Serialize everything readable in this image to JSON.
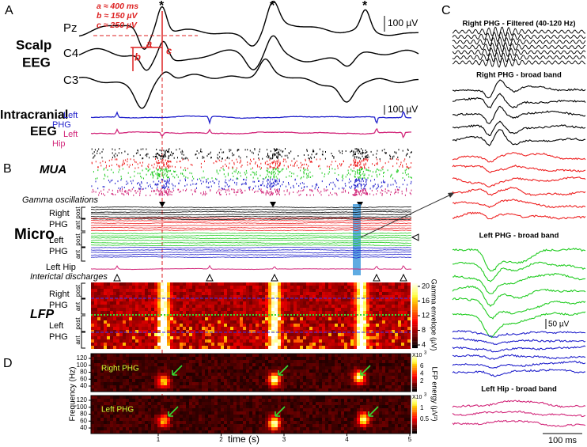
{
  "panel_a": {
    "label": "A",
    "scalp_title": [
      "Scalp",
      "EEG"
    ],
    "channels": [
      "Pz",
      "C4",
      "C3"
    ],
    "annotations": [
      "a ≈ 400 ms",
      "b ≈ 150 µV",
      "c ≈ 250 µV"
    ],
    "segment_letters": [
      "a",
      "b",
      "c"
    ],
    "peak_marker": "*",
    "scale_bar": "100 µV",
    "intracranial_title": [
      "Intracranial",
      "EEG"
    ],
    "intracranial_channels": [
      [
        "Left",
        "PHG"
      ],
      [
        "Left",
        "Hip"
      ]
    ],
    "intracranial_scale_bar": "100 µV"
  },
  "panel_b": {
    "label": "B",
    "mua_title": "MUA",
    "gamma_label": "Gamma oscillations",
    "micro_title": "Micro",
    "micro_groups": [
      [
        "Right",
        "PHG"
      ],
      [
        "Left",
        "PHG"
      ]
    ],
    "subgroups": [
      "post",
      "ant"
    ],
    "hip_label": "Left Hip",
    "interictal_label": "Interictal discharges",
    "lfp_title": "LFP",
    "lfp_groups": [
      [
        "Right",
        "PHG"
      ],
      [
        "Left",
        "PHG"
      ]
    ],
    "colorbar_label": "Gamma envelope (µV)",
    "colorbar_ticks": [
      4,
      8,
      12,
      16,
      20
    ]
  },
  "panel_c": {
    "label": "C",
    "sections": [
      "Right PHG - Filtered (40-120 Hz)",
      "Right PHG - broad band",
      "Left  PHG - broad band",
      "Left Hip - broad band"
    ],
    "amplitude_scale": "50 µV",
    "time_scale": "100 ms"
  },
  "panel_d": {
    "label": "D",
    "panels": [
      "Right PHG",
      "Left PHG"
    ],
    "y_label": "Frequency (Hz)",
    "yticks": [
      40,
      60,
      80,
      100,
      120
    ],
    "x_label": "time (s)",
    "xticks": [
      1,
      2,
      3,
      4,
      5
    ],
    "colorbar_label": "LFP energy (µV²)",
    "colorbar_multiplier": "X10",
    "colorbar_exponent": "3",
    "colorbar_ticks": [
      [
        2,
        4,
        6
      ],
      [
        0.5,
        1
      ]
    ]
  }
}
